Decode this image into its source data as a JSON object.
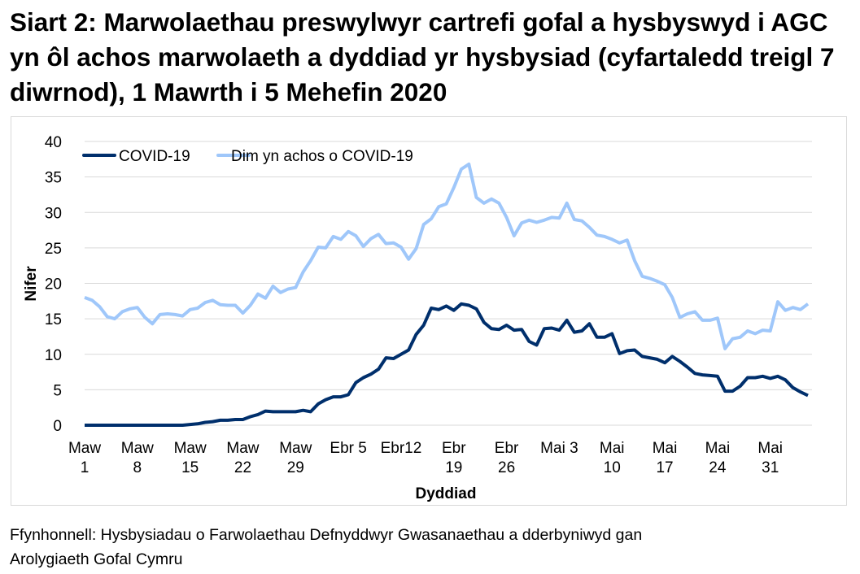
{
  "title": "Siart 2: Marwolaethau preswylwyr cartrefi gofal a hysbyswyd i AGC yn ôl achos marwolaeth a dyddiad yr hysbysiad (cyfartaledd treigl 7 diwrnod), 1 Mawrth i 5 Mehefin 2020",
  "source_lines": [
    "Ffynhonnell: Hysbysiadau o Farwolaethau Defnyddwyr Gwasanaethau a dderbyniwyd gan",
    "Arolygiaeth Gofal Cymru"
  ],
  "chart_data": {
    "type": "line",
    "xlabel": "Dyddiad",
    "ylabel": "Nifer",
    "ylim": [
      0,
      40
    ],
    "yticks": [
      0,
      5,
      10,
      15,
      20,
      25,
      30,
      35,
      40
    ],
    "x_start": "2020-03-01",
    "x_end": "2020-06-05",
    "xtick_labels": [
      [
        "Maw",
        "1"
      ],
      [
        "Maw",
        "8"
      ],
      [
        "Maw",
        "15"
      ],
      [
        "Maw",
        "22"
      ],
      [
        "Maw",
        "29"
      ],
      [
        "Ebr 5"
      ],
      [
        "Ebr12"
      ],
      [
        "Ebr",
        "19"
      ],
      [
        "Ebr",
        "26"
      ],
      [
        "Mai 3"
      ],
      [
        "Mai",
        "10"
      ],
      [
        "Mai",
        "17"
      ],
      [
        "Mai",
        "24"
      ],
      [
        "Mai",
        "31"
      ]
    ],
    "grid": true,
    "legend_position": "top-left",
    "series": [
      {
        "name": "COVID-19",
        "color": "#002f6c",
        "values": [
          0,
          0,
          0,
          0,
          0,
          0,
          0,
          0,
          0,
          0,
          0,
          0,
          0,
          0,
          0.1,
          0.2,
          0.4,
          0.5,
          0.7,
          0.7,
          0.8,
          0.8,
          1.2,
          1.5,
          2.0,
          1.9,
          1.9,
          1.9,
          1.9,
          2.1,
          1.9,
          3.0,
          3.6,
          4.0,
          4.0,
          4.3,
          6.0,
          6.7,
          7.2,
          7.9,
          9.5,
          9.4,
          10.0,
          10.6,
          12.8,
          14.1,
          16.5,
          16.3,
          16.8,
          16.2,
          17.1,
          16.9,
          16.4,
          14.5,
          13.6,
          13.5,
          14.1,
          13.4,
          13.5,
          11.8,
          11.3,
          13.6,
          13.7,
          13.4,
          14.8,
          13.1,
          13.3,
          14.3,
          12.4,
          12.4,
          12.9,
          10.1,
          10.5,
          10.6,
          9.7,
          9.5,
          9.3,
          8.8,
          9.7,
          9.0,
          8.2,
          7.3,
          7.1,
          7.0,
          6.9,
          4.8,
          4.8,
          5.5,
          6.7,
          6.7,
          6.9,
          6.6,
          6.9,
          6.4,
          5.3,
          4.7,
          4.2
        ]
      },
      {
        "name": "Dim yn achos o COVID-19",
        "color": "#9fc7fa",
        "values": [
          18.0,
          17.6,
          16.7,
          15.3,
          15.0,
          16.0,
          16.4,
          16.6,
          15.2,
          14.3,
          15.6,
          15.7,
          15.6,
          15.4,
          16.3,
          16.5,
          17.3,
          17.6,
          17.0,
          16.9,
          16.9,
          15.8,
          16.9,
          18.5,
          17.9,
          19.6,
          18.7,
          19.2,
          19.4,
          21.6,
          23.2,
          25.1,
          25.0,
          26.6,
          26.2,
          27.3,
          26.7,
          25.2,
          26.3,
          26.9,
          25.6,
          25.7,
          25.1,
          23.4,
          24.9,
          28.3,
          29.1,
          30.8,
          31.2,
          33.5,
          36.1,
          36.8,
          32.1,
          31.3,
          31.9,
          31.3,
          29.3,
          26.7,
          28.5,
          28.9,
          28.6,
          28.9,
          29.3,
          29.2,
          31.3,
          29.0,
          28.8,
          27.9,
          26.8,
          26.6,
          26.2,
          25.7,
          26.1,
          23.2,
          21.0,
          20.7,
          20.3,
          19.8,
          18.0,
          15.2,
          15.7,
          16.0,
          14.8,
          14.8,
          15.1,
          10.8,
          12.2,
          12.4,
          13.3,
          12.9,
          13.4,
          13.3,
          17.4,
          16.2,
          16.6,
          16.3,
          17.1
        ]
      }
    ]
  }
}
